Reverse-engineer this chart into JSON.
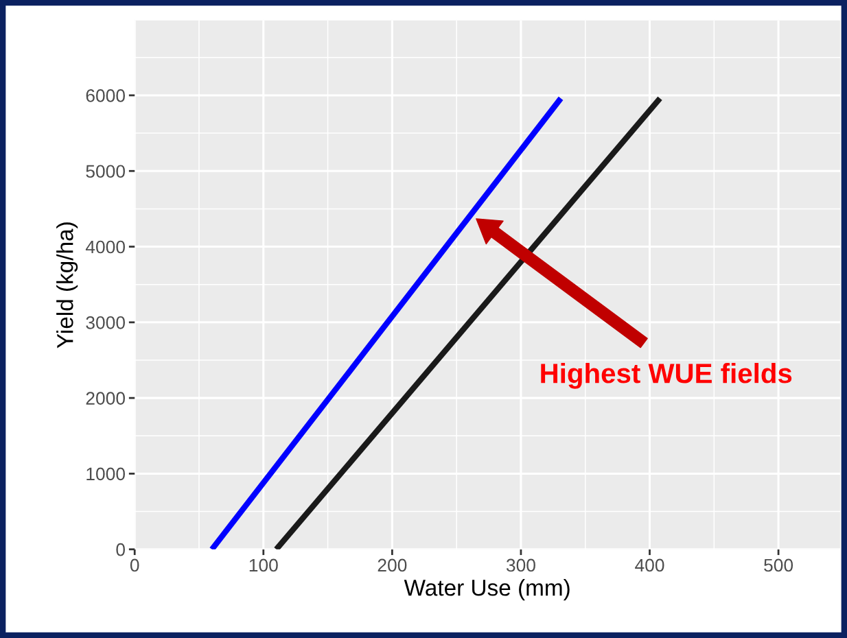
{
  "chart_data": {
    "type": "line",
    "xlabel": "Water Use (mm)",
    "ylabel": "Yield (kg/ha)",
    "xlim": [
      0,
      548
    ],
    "xticks": [
      0,
      100,
      200,
      300,
      400,
      500
    ],
    "ylim": [
      0,
      6990
    ],
    "yticks": [
      0,
      1000,
      2000,
      3000,
      4000,
      5000,
      6000
    ],
    "grid": true,
    "line_style": "solid",
    "marker": "none",
    "series": [
      {
        "color": "#0000ff",
        "x": [
          60,
          331
        ],
        "values": [
          0,
          5960
        ]
      },
      {
        "color": "#1a1a1a",
        "x": [
          110,
          408
        ],
        "values": [
          0,
          5960
        ]
      }
    ],
    "annotations": [
      "Highest WUE fields"
    ]
  }
}
